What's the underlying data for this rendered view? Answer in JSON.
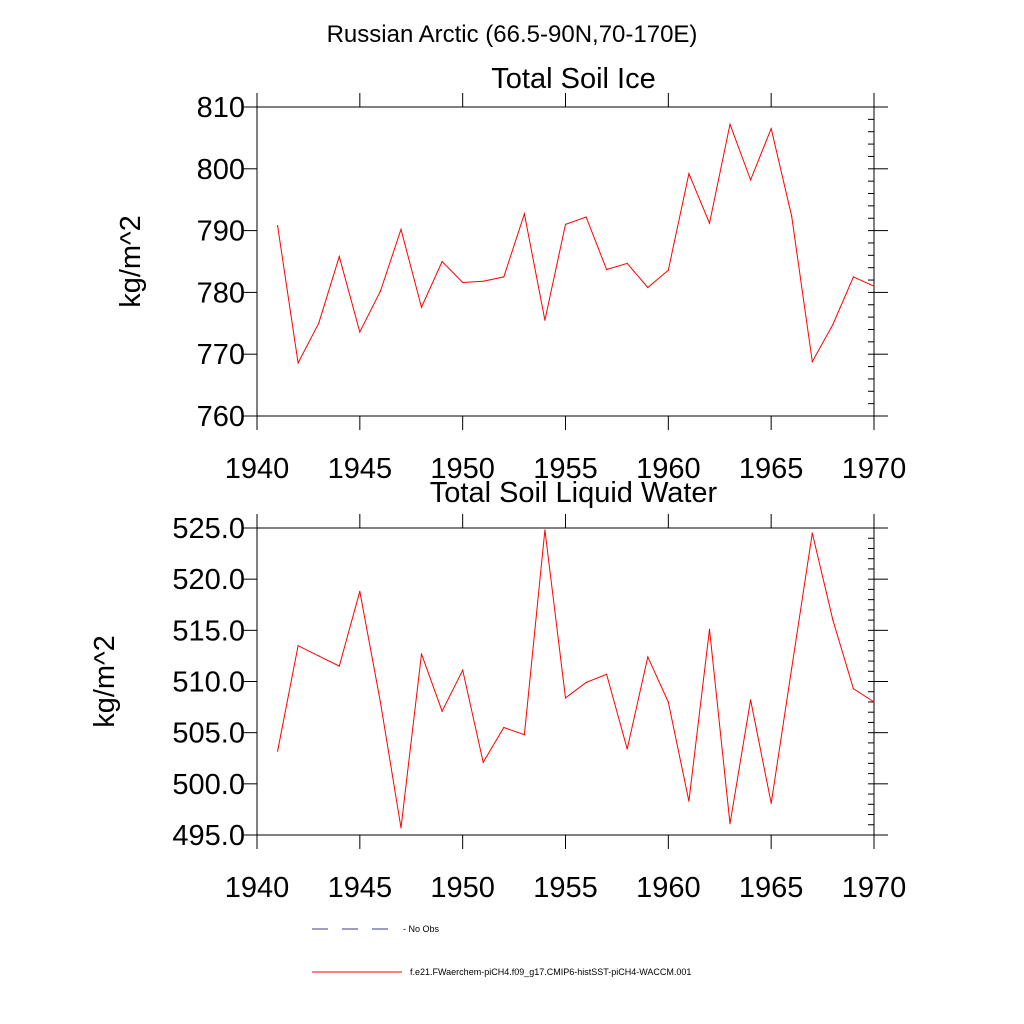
{
  "figure": {
    "title": "Russian Arctic (66.5-90N,70-170E)"
  },
  "legend": {
    "items": [
      {
        "label": "- No Obs",
        "color": "#3a3a8c",
        "style": "dashed"
      },
      {
        "label": "f.e21.FWaerchem-piCH4.f09_g17.CMIP6-histSST-piCH4-WACCM.001",
        "color": "#ff0000",
        "style": "solid"
      }
    ]
  },
  "chart_data": [
    {
      "type": "line",
      "title": "Total Soil Ice",
      "xlabel": "",
      "ylabel": "kg/m^2",
      "xlim": [
        1940,
        1970
      ],
      "ylim": [
        760,
        810
      ],
      "x_ticks": [
        1940,
        1945,
        1950,
        1955,
        1960,
        1965,
        1970
      ],
      "x_tick_labels": [
        "1940",
        "1945",
        "1950",
        "1955",
        "1960",
        "1965",
        "1970"
      ],
      "y_ticks": [
        760,
        770,
        780,
        790,
        800,
        810
      ],
      "y_tick_labels": [
        "760",
        "770",
        "780",
        "790",
        "800",
        "810"
      ],
      "grid": false,
      "series": [
        {
          "color": "#ff0000",
          "x": [
            1941,
            1942,
            1943,
            1944,
            1945,
            1946,
            1947,
            1948,
            1949,
            1950,
            1951,
            1952,
            1953,
            1954,
            1955,
            1956,
            1957,
            1958,
            1959,
            1960,
            1961,
            1962,
            1963,
            1964,
            1965,
            1966,
            1967,
            1968,
            1969,
            1970
          ],
          "values": [
            790.8,
            768.6,
            775.0,
            785.8,
            773.6,
            780.2,
            790.2,
            777.6,
            785.0,
            781.6,
            781.8,
            782.5,
            792.7,
            775.5,
            791.0,
            792.2,
            783.7,
            784.7,
            780.8,
            783.6,
            799.2,
            791.2,
            807.2,
            798.2,
            806.5,
            792.3,
            768.8,
            774.8,
            782.5,
            781.0
          ]
        }
      ]
    },
    {
      "type": "line",
      "title": "Total Soil Liquid Water",
      "xlabel": "",
      "ylabel": "kg/m^2",
      "xlim": [
        1940,
        1970
      ],
      "ylim": [
        495,
        525
      ],
      "x_ticks": [
        1940,
        1945,
        1950,
        1955,
        1960,
        1965,
        1970
      ],
      "x_tick_labels": [
        "1940",
        "1945",
        "1950",
        "1955",
        "1960",
        "1965",
        "1970"
      ],
      "y_ticks": [
        495,
        500,
        505,
        510,
        515,
        520,
        525
      ],
      "y_tick_labels": [
        "495.0",
        "500.0",
        "505.0",
        "510.0",
        "515.0",
        "520.0",
        "525.0"
      ],
      "grid": false,
      "series": [
        {
          "color": "#ff0000",
          "x": [
            1941,
            1942,
            1943,
            1944,
            1945,
            1946,
            1947,
            1948,
            1949,
            1950,
            1951,
            1952,
            1953,
            1954,
            1955,
            1956,
            1957,
            1958,
            1959,
            1960,
            1961,
            1962,
            1963,
            1964,
            1965,
            1966,
            1967,
            1968,
            1969,
            1970
          ],
          "values": [
            503.2,
            513.5,
            512.5,
            511.5,
            518.8,
            508.0,
            495.7,
            512.7,
            507.1,
            511.1,
            502.1,
            505.5,
            504.8,
            524.8,
            508.4,
            509.9,
            510.7,
            503.4,
            512.4,
            508.0,
            498.3,
            515.1,
            496.1,
            508.2,
            498.1,
            511.3,
            524.5,
            516.0,
            509.3,
            508.0
          ]
        }
      ]
    }
  ]
}
